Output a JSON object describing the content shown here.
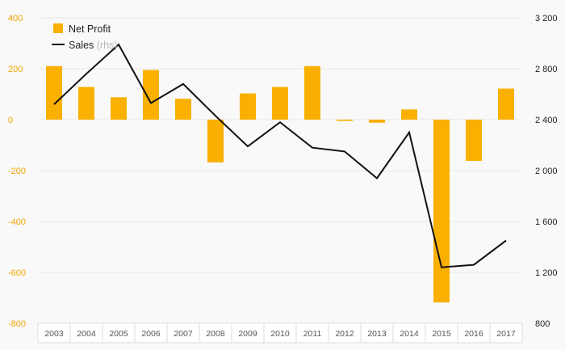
{
  "chart_data": {
    "type": "bar",
    "categories": [
      "2003",
      "2004",
      "2005",
      "2006",
      "2007",
      "2008",
      "2009",
      "2010",
      "2011",
      "2012",
      "2013",
      "2014",
      "2015",
      "2016",
      "2017"
    ],
    "series": [
      {
        "name": "Net Profit",
        "type": "bar",
        "axis": "left",
        "color": "#f9b000",
        "values": [
          210,
          128,
          88,
          195,
          82,
          -168,
          103,
          128,
          210,
          -5,
          -12,
          40,
          -718,
          -162,
          122
        ]
      },
      {
        "name": "Sales",
        "axis_note": "(rhs)",
        "type": "line",
        "axis": "right",
        "color": "#111111",
        "values": [
          2520,
          2760,
          2990,
          2530,
          2680,
          2430,
          2190,
          2380,
          2180,
          2150,
          1940,
          2300,
          1240,
          1260,
          1450
        ]
      }
    ],
    "left_axis": {
      "ylim": [
        -800,
        400
      ],
      "ticks": [
        400,
        200,
        0,
        -200,
        -400,
        -600,
        -800
      ],
      "tick_labels": [
        "400",
        "200",
        "0",
        "-200",
        "-400",
        "-600",
        "-800"
      ],
      "color": "#f0a500"
    },
    "right_axis": {
      "ylim": [
        800,
        3200
      ],
      "ticks": [
        3200,
        2800,
        2400,
        2000,
        1600,
        1200,
        800
      ],
      "tick_labels": [
        "3 200",
        "2 800",
        "2 400",
        "2 000",
        "1 600",
        "1 200",
        "800"
      ],
      "color": "#222222"
    },
    "grid": true,
    "legend_position": "top-left",
    "title": "",
    "xlabel": "",
    "ylabel": ""
  }
}
